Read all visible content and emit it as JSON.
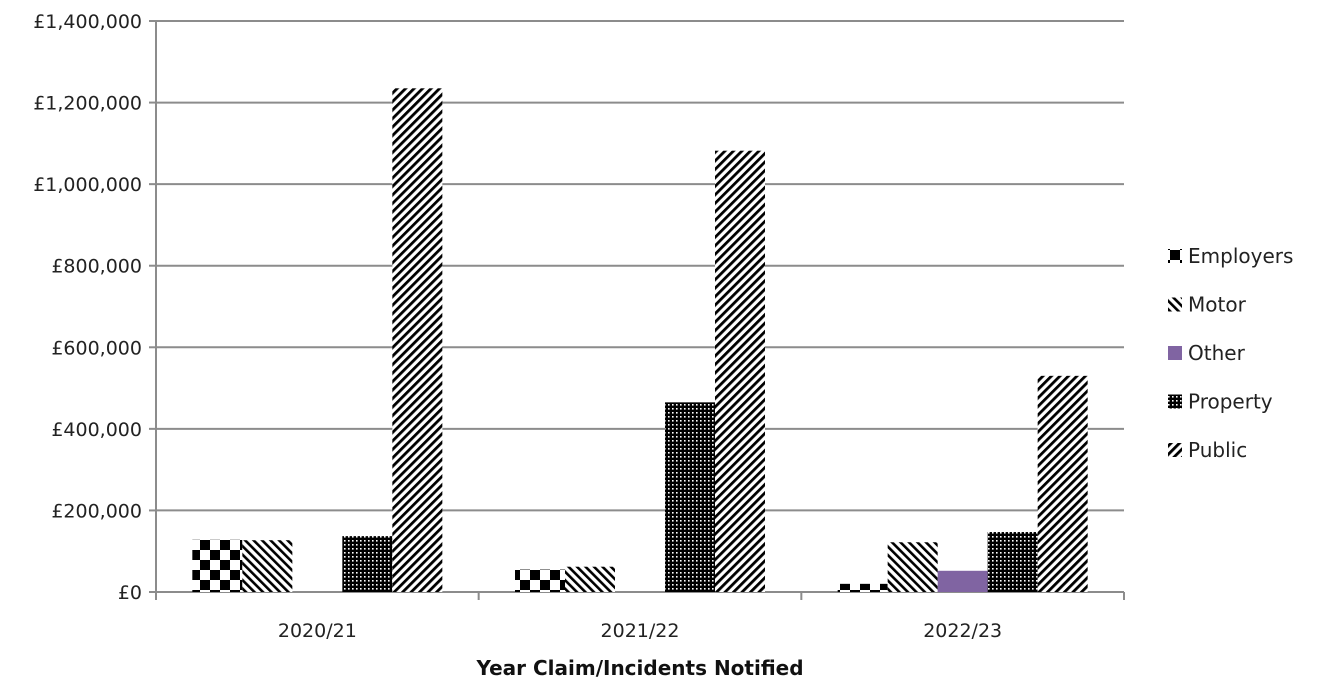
{
  "chart_data": {
    "type": "bar",
    "title": "",
    "xlabel": "Year Claim/Incidents Notified",
    "ylabel": "",
    "categories": [
      "2020/21",
      "2021/22",
      "2022/23"
    ],
    "ylim": [
      0,
      1400000
    ],
    "yticks": [
      0,
      200000,
      400000,
      600000,
      800000,
      1000000,
      1200000,
      1400000
    ],
    "ytick_labels": [
      "£0",
      "£200,000",
      "£400,000",
      "£600,000",
      "£800,000",
      "£1,000,000",
      "£1,200,000",
      "£1,400,000"
    ],
    "grid": true,
    "legend_position": "right",
    "series": [
      {
        "name": "Employers",
        "pattern": "checker",
        "color": "#000000",
        "values": [
          128000,
          55000,
          20000
        ]
      },
      {
        "name": "Motor",
        "pattern": "diagonal-left",
        "color": "#000000",
        "values": [
          127000,
          62000,
          122000
        ]
      },
      {
        "name": "Other",
        "pattern": "solid",
        "color": "#8064A2",
        "values": [
          0,
          0,
          52000
        ]
      },
      {
        "name": "Property",
        "pattern": "dense-grid",
        "color": "#000000",
        "values": [
          137000,
          465000,
          147000
        ]
      },
      {
        "name": "Public",
        "pattern": "diagonal-right",
        "color": "#000000",
        "values": [
          1235000,
          1082000,
          530000
        ]
      }
    ]
  }
}
